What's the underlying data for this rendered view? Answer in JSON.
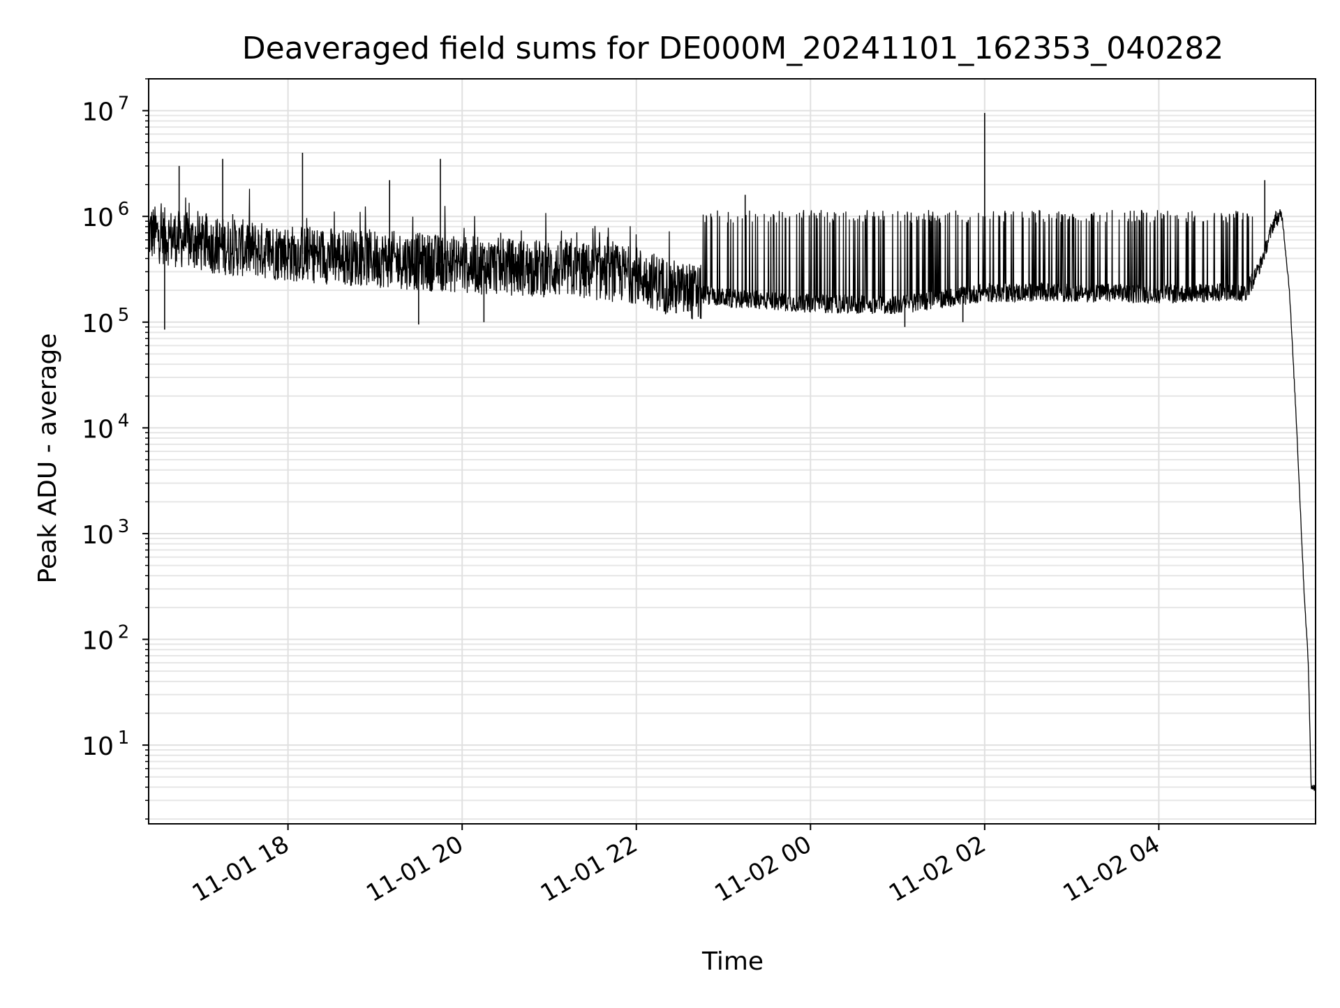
{
  "chart_data": {
    "type": "line",
    "title": "Deaveraged field sums for DE000M_20241101_162353_040282",
    "xlabel": "Time",
    "ylabel": "Peak ADU - average",
    "yscale": "log",
    "grid": true,
    "grid_minor": true,
    "legend": "none",
    "line_color": "#000000",
    "xlim": [
      "2024-11-01T16:24",
      "2024-11-02T05:48"
    ],
    "ylim": [
      1.8,
      20000000
    ],
    "x_ticks": [
      {
        "value": "2024-11-01T18:00",
        "label": "11-01 18"
      },
      {
        "value": "2024-11-01T20:00",
        "label": "11-01 20"
      },
      {
        "value": "2024-11-01T22:00",
        "label": "11-01 22"
      },
      {
        "value": "2024-11-02T00:00",
        "label": "11-02 00"
      },
      {
        "value": "2024-11-02T02:00",
        "label": "11-02 02"
      },
      {
        "value": "2024-11-02T04:00",
        "label": "11-02 04"
      }
    ],
    "y_ticks": [
      {
        "value": 10,
        "base": "10",
        "exp": "1"
      },
      {
        "value": 100,
        "base": "10",
        "exp": "2"
      },
      {
        "value": 1000,
        "base": "10",
        "exp": "3"
      },
      {
        "value": 10000,
        "base": "10",
        "exp": "4"
      },
      {
        "value": 100000,
        "base": "10",
        "exp": "5"
      },
      {
        "value": 1000000,
        "base": "10",
        "exp": "6"
      },
      {
        "value": 10000000,
        "base": "10",
        "exp": "7"
      }
    ],
    "series": [
      {
        "baseline": [
          {
            "x": "2024-11-01T16:24",
            "y": 700000
          },
          {
            "x": "2024-11-01T17:00",
            "y": 550000
          },
          {
            "x": "2024-11-01T18:00",
            "y": 450000
          },
          {
            "x": "2024-11-01T19:00",
            "y": 400000
          },
          {
            "x": "2024-11-01T20:00",
            "y": 350000
          },
          {
            "x": "2024-11-01T21:00",
            "y": 320000
          },
          {
            "x": "2024-11-01T22:00",
            "y": 280000
          },
          {
            "x": "2024-11-01T22:30",
            "y": 200000
          },
          {
            "x": "2024-11-01T23:00",
            "y": 170000
          },
          {
            "x": "2024-11-02T00:00",
            "y": 150000
          },
          {
            "x": "2024-11-02T01:00",
            "y": 145000
          },
          {
            "x": "2024-11-02T02:00",
            "y": 190000
          },
          {
            "x": "2024-11-02T03:00",
            "y": 190000
          },
          {
            "x": "2024-11-02T04:00",
            "y": 185000
          },
          {
            "x": "2024-11-02T05:00",
            "y": 190000
          },
          {
            "x": "2024-11-02T05:10",
            "y": 350000
          },
          {
            "x": "2024-11-02T05:20",
            "y": 950000
          },
          {
            "x": "2024-11-02T05:25",
            "y": 1000000
          },
          {
            "x": "2024-11-02T05:30",
            "y": 200000
          },
          {
            "x": "2024-11-02T05:35",
            "y": 10000
          },
          {
            "x": "2024-11-02T05:40",
            "y": 300
          },
          {
            "x": "2024-11-02T05:43",
            "y": 60
          },
          {
            "x": "2024-11-02T05:45",
            "y": 4
          },
          {
            "x": "2024-11-02T05:48",
            "y": 4
          }
        ],
        "peaks": [
          {
            "x": "2024-11-01T16:45",
            "y": 3000000
          },
          {
            "x": "2024-11-01T17:15",
            "y": 3500000
          },
          {
            "x": "2024-11-01T18:10",
            "y": 4000000
          },
          {
            "x": "2024-11-01T19:10",
            "y": 2200000
          },
          {
            "x": "2024-11-01T19:45",
            "y": 3500000
          },
          {
            "x": "2024-11-01T23:15",
            "y": 1600000
          },
          {
            "x": "2024-11-02T02:00",
            "y": 9500000
          },
          {
            "x": "2024-11-02T05:13",
            "y": 2200000
          }
        ],
        "dips": [
          {
            "x": "2024-11-01T16:35",
            "y": 85000
          },
          {
            "x": "2024-11-01T19:30",
            "y": 95000
          },
          {
            "x": "2024-11-01T20:15",
            "y": 100000
          },
          {
            "x": "2024-11-02T01:05",
            "y": 90000
          },
          {
            "x": "2024-11-02T01:45",
            "y": 100000
          }
        ]
      }
    ]
  }
}
